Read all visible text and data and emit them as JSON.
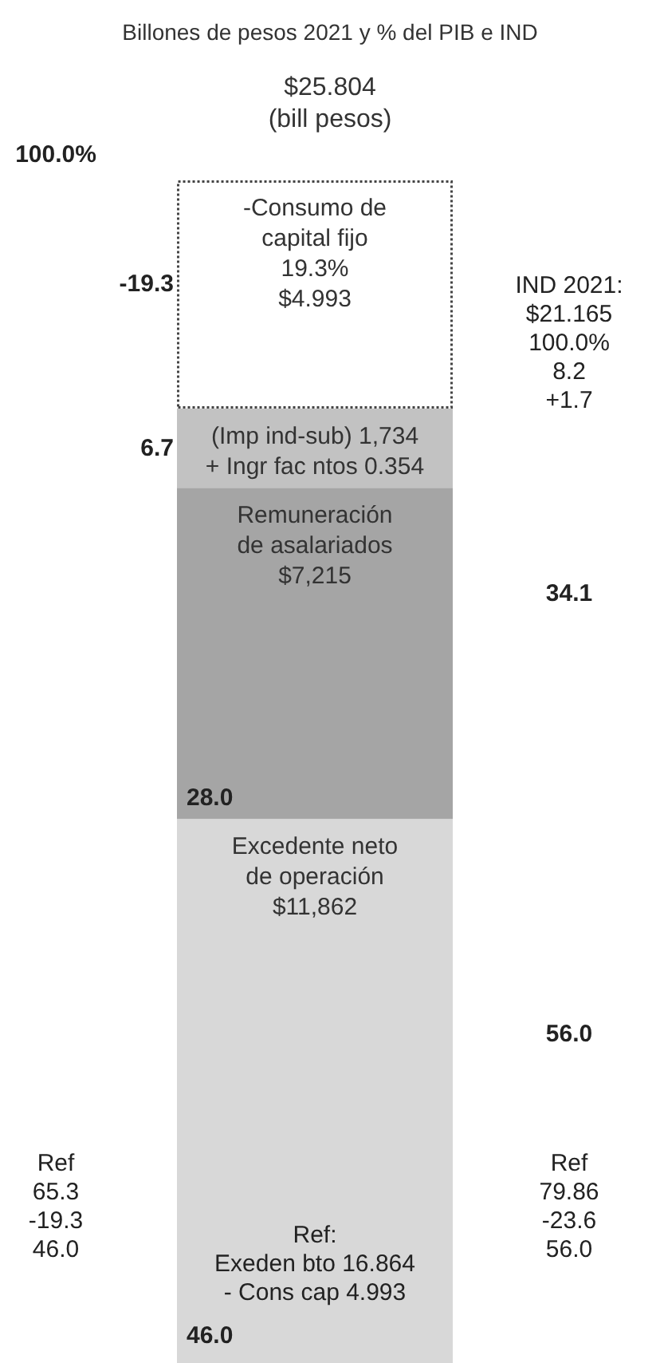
{
  "chart_data": {
    "type": "bar",
    "stacked": true,
    "title": "Billones de pesos 2021 y % del PIB e IND",
    "subtitle": "$25.804\n(bill pesos)",
    "categories": [
      null
    ],
    "legend": false,
    "series": [
      {
        "name": "Excedente neto\nde operación\n$11,862",
        "color": "#d8d8d8",
        "values": [
          46.0
        ],
        "value_labels": [
          "46.0"
        ]
      },
      {
        "name": "Remuneración\nde asalariados\n$7,215",
        "color": "#a5a5a5",
        "values": [
          28.0
        ],
        "value_labels": [
          "28.0"
        ]
      },
      {
        "name": "(Imp ind-sub) 1,734\n+ Ingr fac ntos 0.354",
        "color": "#c2c2c2",
        "values": [
          6.7
        ],
        "value_labels": [
          "6.7"
        ]
      },
      {
        "name": "-Consumo de\ncapital fijo\n19.3%\n$4.993",
        "color": "#ffffff",
        "line_style": "dotted",
        "values": [
          19.3
        ],
        "value_labels": [
          null
        ]
      }
    ],
    "annotations": [
      "100.0%",
      "-19.3",
      "Ref\n65.3\n-19.3\n46.0",
      "Ref:\nExeden bto 16.864\n- Cons cap 4.993",
      "IND 2021:\n$21.165\n100.0%\n8.2\n+1.7",
      "34.1",
      "56.0",
      "Ref\n79.86\n-23.6\n56.0"
    ]
  }
}
